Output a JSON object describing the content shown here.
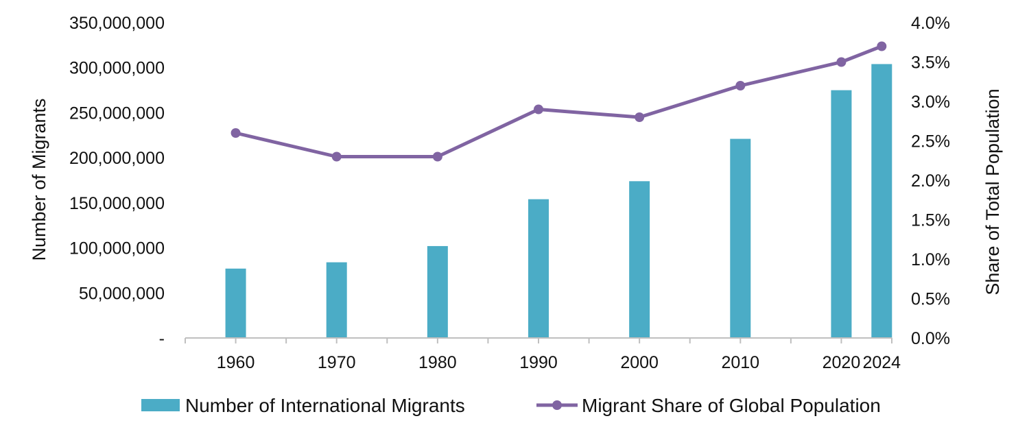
{
  "chart_data": {
    "type": "bar+line",
    "categories": [
      "1960",
      "1970",
      "1980",
      "1990",
      "2000",
      "2010",
      "2020",
      "2024"
    ],
    "x_values": [
      1960,
      1970,
      1980,
      1990,
      2000,
      2010,
      2020,
      2024
    ],
    "series": [
      {
        "name": "Number of International Migrants",
        "type": "bar",
        "axis": "left",
        "color": "#4bacc6",
        "values": [
          77000000,
          84000000,
          102000000,
          154000000,
          174000000,
          221000000,
          275000000,
          304000000
        ]
      },
      {
        "name": "Migrant Share of Global Population",
        "type": "line",
        "axis": "right",
        "color": "#8064a2",
        "values": [
          2.6,
          2.3,
          2.3,
          2.9,
          2.8,
          3.2,
          3.5,
          3.7
        ]
      }
    ],
    "y_left": {
      "label": "Number of Migrants",
      "lim": [
        0,
        350000000
      ],
      "ticks": [
        0,
        50000000,
        100000000,
        150000000,
        200000000,
        250000000,
        300000000,
        350000000
      ],
      "tick_labels": [
        "-",
        "50,000,000",
        "100,000,000",
        "150,000,000",
        "200,000,000",
        "250,000,000",
        "300,000,000",
        "350,000,000"
      ]
    },
    "y_right": {
      "label": "Share of Total Population",
      "lim": [
        0,
        4.0
      ],
      "ticks": [
        0,
        0.5,
        1.0,
        1.5,
        2.0,
        2.5,
        3.0,
        3.5,
        4.0
      ],
      "tick_labels": [
        "0.0%",
        "0.5%",
        "1.0%",
        "1.5%",
        "2.0%",
        "2.5%",
        "3.0%",
        "3.5%",
        "4.0%"
      ]
    },
    "x_axis": {
      "label": "",
      "lim": [
        1955,
        2025
      ]
    },
    "grid": false,
    "legend": {
      "position": "bottom"
    }
  }
}
